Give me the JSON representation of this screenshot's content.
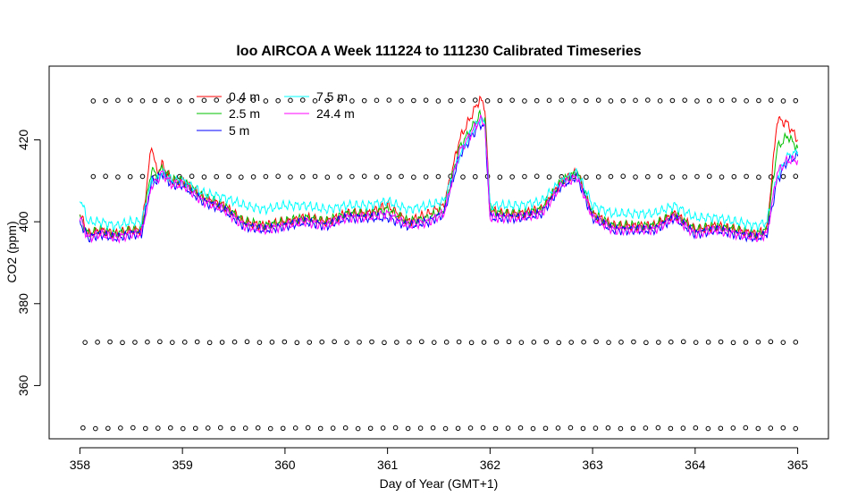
{
  "chart_data": {
    "type": "line",
    "title": "loo AIRCOA A  Week 111224 to 111230  Calibrated Timeseries",
    "xlabel": "Day of Year (GMT+1)",
    "ylabel": "CO2 (ppm)",
    "xlim": [
      357.7,
      365.3
    ],
    "ylim": [
      347,
      438
    ],
    "x_ticks": [
      "358",
      "359",
      "360",
      "361",
      "362",
      "363",
      "364",
      "365"
    ],
    "y_ticks": [
      "360",
      "380",
      "400",
      "420"
    ],
    "grid": false,
    "legend_position": "top-left",
    "series": [
      {
        "name": "0.4 m",
        "color": "#ff0000",
        "x": [
          358.0,
          358.08,
          358.2,
          358.35,
          358.5,
          358.6,
          358.7,
          358.75,
          358.8,
          358.9,
          359.0,
          359.2,
          359.4,
          359.6,
          359.8,
          360.0,
          360.2,
          360.4,
          360.6,
          360.8,
          361.0,
          361.2,
          361.4,
          361.55,
          361.7,
          361.8,
          361.9,
          361.95,
          362.0,
          362.1,
          362.3,
          362.5,
          362.7,
          362.85,
          363.0,
          363.2,
          363.4,
          363.6,
          363.8,
          364.0,
          364.2,
          364.4,
          364.6,
          364.7,
          364.8,
          364.9,
          365.0
        ],
        "y": [
          402,
          397,
          398,
          397,
          398,
          398,
          419,
          412,
          414,
          410,
          410,
          406,
          404,
          400,
          399,
          400,
          401,
          400,
          402,
          402,
          404,
          400,
          402,
          404,
          420,
          425,
          430,
          428,
          403,
          402,
          402,
          403,
          410,
          412,
          402,
          399,
          399,
          399,
          402,
          398,
          399,
          398,
          397,
          398,
          425,
          424,
          420
        ]
      },
      {
        "name": "2.5 m",
        "color": "#00c000",
        "x": [
          358.0,
          358.08,
          358.2,
          358.35,
          358.5,
          358.6,
          358.7,
          358.75,
          358.8,
          358.9,
          359.0,
          359.2,
          359.4,
          359.6,
          359.8,
          360.0,
          360.2,
          360.4,
          360.6,
          360.8,
          361.0,
          361.2,
          361.4,
          361.55,
          361.7,
          361.8,
          361.9,
          361.95,
          362.0,
          362.1,
          362.3,
          362.5,
          362.7,
          362.85,
          363.0,
          363.2,
          363.4,
          363.6,
          363.8,
          364.0,
          364.2,
          364.4,
          364.6,
          364.7,
          364.8,
          364.9,
          365.0
        ],
        "y": [
          401,
          397,
          398,
          397,
          398,
          398,
          413,
          411,
          413,
          410,
          410,
          406,
          404,
          400,
          399,
          400,
          401,
          400,
          402,
          402,
          403,
          400,
          401,
          403,
          418,
          422,
          426,
          425,
          403,
          402,
          402,
          403,
          410,
          412,
          402,
          399,
          399,
          399,
          402,
          398,
          399,
          398,
          397,
          398,
          418,
          421,
          418
        ]
      },
      {
        "name": "5 m",
        "color": "#0000ff",
        "x": [
          358.0,
          358.08,
          358.2,
          358.35,
          358.5,
          358.6,
          358.7,
          358.75,
          358.8,
          358.9,
          359.0,
          359.2,
          359.4,
          359.6,
          359.8,
          360.0,
          360.2,
          360.4,
          360.6,
          360.8,
          361.0,
          361.2,
          361.4,
          361.55,
          361.7,
          361.8,
          361.9,
          361.95,
          362.0,
          362.1,
          362.3,
          362.5,
          362.7,
          362.85,
          363.0,
          363.2,
          363.4,
          363.6,
          363.8,
          364.0,
          364.2,
          364.4,
          364.6,
          364.7,
          364.8,
          364.9,
          365.0
        ],
        "y": [
          400,
          396,
          397,
          396,
          397,
          397,
          410,
          410,
          412,
          409,
          409,
          405,
          403,
          399,
          398,
          399,
          400,
          399,
          401,
          401,
          401,
          399,
          400,
          402,
          416,
          420,
          424,
          423,
          401,
          401,
          401,
          402,
          409,
          411,
          401,
          398,
          398,
          398,
          401,
          397,
          398,
          397,
          396,
          397,
          410,
          415,
          416
        ]
      },
      {
        "name": "7.5 m",
        "color": "#00ffff",
        "x": [
          358.0,
          358.08,
          358.2,
          358.35,
          358.5,
          358.6,
          358.7,
          358.75,
          358.8,
          358.9,
          359.0,
          359.2,
          359.4,
          359.6,
          359.8,
          360.0,
          360.2,
          360.4,
          360.6,
          360.8,
          361.0,
          361.2,
          361.4,
          361.55,
          361.7,
          361.8,
          361.9,
          361.95,
          362.0,
          362.1,
          362.3,
          362.5,
          362.7,
          362.85,
          363.0,
          363.2,
          363.4,
          363.6,
          363.8,
          364.0,
          364.2,
          364.4,
          364.6,
          364.7,
          364.8,
          364.9,
          365.0
        ],
        "y": [
          406,
          400,
          400,
          399,
          400,
          400,
          410,
          410,
          412,
          410,
          410,
          407,
          406,
          404,
          403,
          404,
          404,
          403,
          404,
          404,
          405,
          403,
          404,
          405,
          416,
          421,
          425,
          424,
          404,
          404,
          404,
          405,
          410,
          412,
          404,
          402,
          402,
          402,
          404,
          401,
          401,
          400,
          399,
          400,
          411,
          416,
          417
        ]
      },
      {
        "name": "24.4 m",
        "color": "#ff00ff",
        "x": [
          358.0,
          358.08,
          358.2,
          358.35,
          358.5,
          358.6,
          358.7,
          358.75,
          358.8,
          358.9,
          359.0,
          359.2,
          359.4,
          359.6,
          359.8,
          360.0,
          360.2,
          360.4,
          360.6,
          360.8,
          361.0,
          361.2,
          361.4,
          361.55,
          361.7,
          361.8,
          361.9,
          361.95,
          362.0,
          362.1,
          362.3,
          362.5,
          362.7,
          362.85,
          363.0,
          363.2,
          363.4,
          363.6,
          363.8,
          364.0,
          364.2,
          364.4,
          364.6,
          364.7,
          364.8,
          364.9,
          365.0
        ],
        "y": [
          401,
          396,
          397,
          396,
          397,
          397,
          409,
          410,
          412,
          409,
          409,
          405,
          403,
          399,
          398,
          399,
          400,
          399,
          401,
          401,
          402,
          399,
          400,
          402,
          417,
          421,
          425,
          424,
          401,
          401,
          401,
          402,
          409,
          411,
          401,
          398,
          398,
          398,
          401,
          397,
          398,
          397,
          396,
          397,
          412,
          415,
          415
        ]
      }
    ],
    "reference_points": [
      {
        "y": 429.6,
        "x_start": 358.13,
        "x_end": 364.98
      },
      {
        "y": 411.0,
        "x_start": 358.13,
        "x_end": 364.98
      },
      {
        "y": 370.6,
        "x_start": 358.05,
        "x_end": 364.98
      },
      {
        "y": 349.6,
        "x_start": 358.03,
        "x_end": 364.98
      }
    ]
  }
}
